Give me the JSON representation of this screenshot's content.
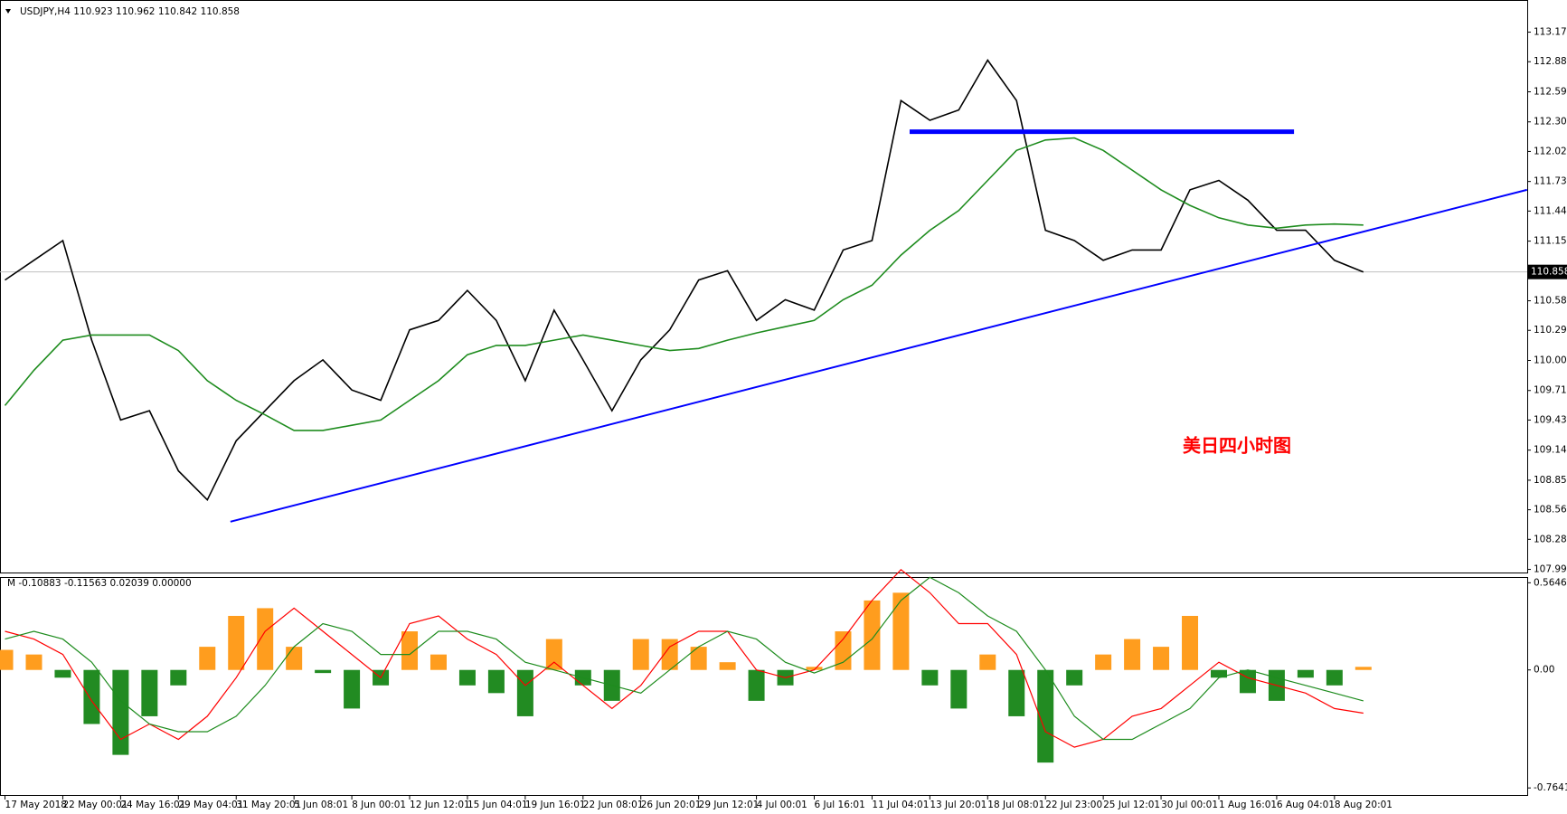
{
  "chart_data": [
    {
      "type": "line",
      "title": "USDJPY,H4 110.923 110.962 110.842 110.858",
      "categories": [
        "17 May 2018",
        null,
        "22 May 00:01",
        null,
        "24 May 16:01",
        null,
        "29 May 04:01",
        null,
        "31 May 20:01",
        null,
        "5 Jun 08:01",
        null,
        "8 Jun 00:01",
        null,
        "12 Jun 12:01",
        null,
        "15 Jun 04:01",
        null,
        "19 Jun 16:01",
        null,
        "22 Jun 08:01",
        null,
        "26 Jun 20:01",
        null,
        "29 Jun 12:01",
        null,
        "4 Jul 00:01",
        null,
        "6 Jul 16:01",
        null,
        "11 Jul 04:01",
        null,
        "13 Jul 20:01",
        null,
        "18 Jul 08:01",
        null,
        "22 Jul 23:00",
        null,
        "25 Jul 12:01",
        null,
        "30 Jul 00:01",
        null,
        "1 Aug 16:01",
        null,
        "6 Aug 04:01",
        null,
        "8 Aug 20:01",
        null
      ],
      "series": [
        {
          "color": "#000000",
          "values": [
            110.78,
            110.97,
            111.16,
            110.2,
            109.43,
            109.52,
            108.94,
            108.66,
            109.23,
            109.52,
            109.81,
            110.01,
            109.72,
            109.62,
            110.3,
            110.39,
            110.68,
            110.39,
            109.81,
            110.49,
            110.01,
            109.52,
            110.01,
            110.3,
            110.78,
            110.87,
            110.39,
            110.59,
            110.49,
            111.07,
            111.16,
            112.51,
            112.32,
            112.42,
            112.9,
            112.51,
            111.26,
            111.16,
            110.97,
            111.07,
            111.07,
            111.65,
            111.74,
            111.55,
            111.26,
            111.26,
            110.97,
            110.858
          ]
        },
        {
          "color": "#1e8c1e",
          "values": [
            109.57,
            109.91,
            110.2,
            110.25,
            110.25,
            110.25,
            110.1,
            109.81,
            109.62,
            109.48,
            109.33,
            109.33,
            109.38,
            109.43,
            109.62,
            109.81,
            110.06,
            110.15,
            110.15,
            110.2,
            110.25,
            110.2,
            110.15,
            110.1,
            110.12,
            110.2,
            110.27,
            110.33,
            110.39,
            110.59,
            110.73,
            111.02,
            111.26,
            111.45,
            111.74,
            112.03,
            112.13,
            112.15,
            112.03,
            111.84,
            111.65,
            111.5,
            111.38,
            111.31,
            111.28,
            111.31,
            111.32,
            111.31
          ]
        }
      ],
      "trendlines": [
        {
          "x": [
            7.8,
            52.66
          ],
          "values": [
            108.45,
            111.65
          ],
          "color": "#0000ff",
          "line_width": 2
        },
        {
          "x": [
            31.3,
            44.6
          ],
          "values": [
            112.21,
            112.21
          ],
          "color": "#0000ff",
          "line_width": 5
        }
      ],
      "last_price": 110.858,
      "annotation": {
        "text": "美日四小时图",
        "color": "#ff0000"
      },
      "ylim": [
        107.96,
        113.48
      ],
      "yticks": [
        {
          "value": 113.17,
          "label": "113.170"
        },
        112.885,
        112.595,
        112.305,
        {
          "value": 112.02,
          "label": "112.020"
        },
        {
          "value": 111.73,
          "label": "111.730"
        },
        111.445,
        111.155,
        {
          "value": 110.58,
          "label": "110.580"
        },
        110.295,
        110.005,
        109.715,
        {
          "value": 109.43,
          "label": "109.430"
        },
        {
          "value": 109.14,
          "label": "109.140"
        },
        {
          "value": 108.85,
          "label": "108.850"
        },
        108.565,
        {
          "value": 108.28,
          "label": "108.280"
        },
        {
          "value": 107.99,
          "label": "107.990"
        }
      ]
    },
    {
      "type": "macd",
      "title": "M -0.10883 -0.11563 0.02039 0.00000",
      "histogram": [
        0.13,
        0.1,
        -0.05,
        -0.35,
        -0.55,
        -0.3,
        -0.1,
        0.15,
        0.35,
        0.4,
        0.15,
        -0.02,
        -0.25,
        -0.1,
        0.25,
        0.1,
        -0.1,
        -0.15,
        -0.3,
        0.2,
        -0.1,
        -0.2,
        0.2,
        0.2,
        0.15,
        0.05,
        -0.2,
        -0.1,
        0.02,
        0.25,
        0.45,
        0.5,
        -0.1,
        -0.25,
        0.1,
        -0.3,
        -0.6,
        -0.1,
        0.1,
        0.2,
        0.15,
        0.35,
        -0.05,
        -0.15,
        -0.2,
        -0.05,
        -0.1,
        0.02
      ],
      "colors": {
        "positive": "#ff9d1e",
        "negative": "#228b22"
      },
      "series": [
        {
          "color": "#ff0000",
          "values": [
            0.25,
            0.2,
            0.1,
            -0.2,
            -0.45,
            -0.35,
            -0.45,
            -0.3,
            -0.05,
            0.25,
            0.4,
            0.25,
            0.1,
            -0.05,
            0.3,
            0.35,
            0.2,
            0.1,
            -0.1,
            0.05,
            -0.1,
            -0.25,
            -0.1,
            0.15,
            0.25,
            0.25,
            0.0,
            -0.05,
            0.0,
            0.2,
            0.45,
            0.65,
            0.5,
            0.3,
            0.3,
            0.1,
            -0.4,
            -0.5,
            -0.45,
            -0.3,
            -0.25,
            -0.1,
            0.05,
            -0.05,
            -0.1,
            -0.15,
            -0.25,
            -0.28
          ]
        },
        {
          "color": "#1e8c1e",
          "values": [
            0.2,
            0.25,
            0.2,
            0.05,
            -0.2,
            -0.35,
            -0.4,
            -0.4,
            -0.3,
            -0.1,
            0.15,
            0.3,
            0.25,
            0.1,
            0.1,
            0.25,
            0.25,
            0.2,
            0.05,
            0.0,
            -0.05,
            -0.1,
            -0.15,
            0.0,
            0.15,
            0.25,
            0.2,
            0.05,
            -0.02,
            0.05,
            0.2,
            0.45,
            0.6,
            0.5,
            0.35,
            0.25,
            0.0,
            -0.3,
            -0.45,
            -0.45,
            -0.35,
            -0.25,
            -0.05,
            0.0,
            -0.05,
            -0.1,
            -0.15,
            -0.2
          ]
        }
      ],
      "ylim": [
        -0.81,
        0.59
      ],
      "yticks": [
        0.56465,
        {
          "value": 0,
          "label": "0.00"
        },
        -0.76414
      ]
    }
  ]
}
